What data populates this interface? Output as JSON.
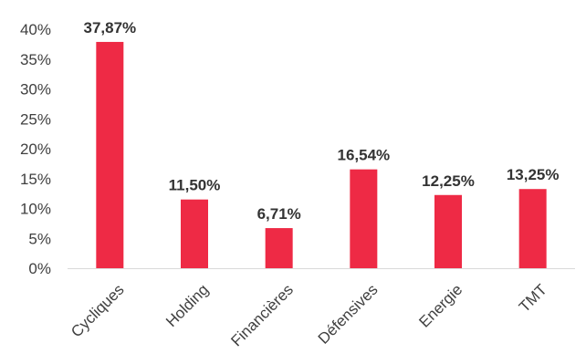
{
  "chart_data": {
    "type": "bar",
    "categories": [
      "Cycliques",
      "Holding",
      "Financières",
      "Défensives",
      "Energie",
      "TMT"
    ],
    "values": [
      37.87,
      11.5,
      6.71,
      16.54,
      12.25,
      13.25
    ],
    "data_labels": [
      "37,87%",
      "11,50%",
      "6,71%",
      "16,54%",
      "12,25%",
      "13,25%"
    ],
    "y_ticks": [
      "0%",
      "5%",
      "10%",
      "15%",
      "20%",
      "25%",
      "30%",
      "35%",
      "40%"
    ],
    "ylim": [
      0,
      40
    ],
    "grid": false,
    "legend": "none",
    "bar_color": "#ee2a45"
  }
}
